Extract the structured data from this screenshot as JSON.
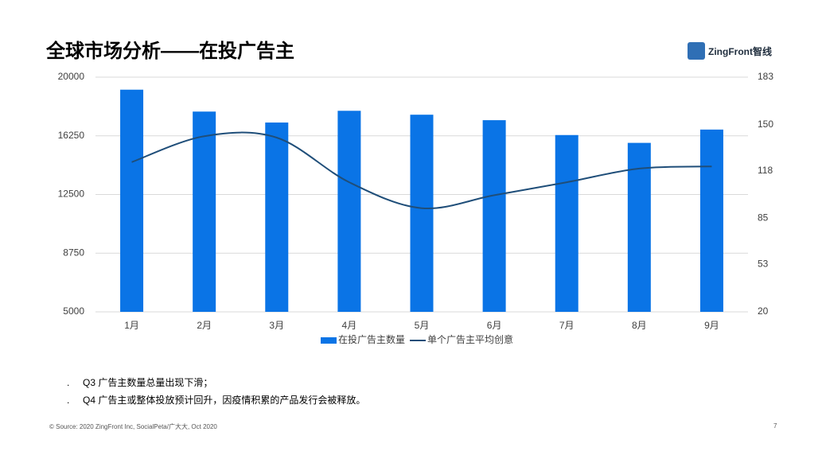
{
  "slide": {
    "title": "全球市场分析——在投广告主",
    "logo": "ZingFront智线",
    "bullets": [
      "Q3 广告主数量总量出现下滑；",
      "Q4 广告主或整体投放预计回升，因疫情积累的产品发行会被释放。"
    ],
    "source": "© Source: 2020 ZingFront Inc, SocialPeta/广大大, Oct 2020",
    "page_number": "7"
  },
  "chart_data": {
    "type": "bar",
    "categories": [
      "1月",
      "2月",
      "3月",
      "4月",
      "5月",
      "6月",
      "7月",
      "8月",
      "9月"
    ],
    "series": [
      {
        "name": "在投广告主数量",
        "type": "bar",
        "color": "#0a74e6",
        "axis": "y",
        "values": [
          19200,
          17800,
          17100,
          17850,
          17600,
          17250,
          16300,
          15800,
          16650
        ]
      },
      {
        "name": "单个广告主平均创意",
        "type": "line",
        "color": "#1f4e79",
        "axis": "y2",
        "values": [
          124,
          142,
          141,
          110,
          92,
          101,
          110,
          119.5,
          121
        ]
      }
    ],
    "ylim": [
      5000,
      20000
    ],
    "yticks": [
      5000,
      8750,
      12500,
      16250,
      20000
    ],
    "y2lim": [
      20,
      183
    ],
    "y2ticks": [
      20,
      53,
      85,
      118,
      150,
      183
    ],
    "grid": true,
    "legend": "bottom"
  }
}
